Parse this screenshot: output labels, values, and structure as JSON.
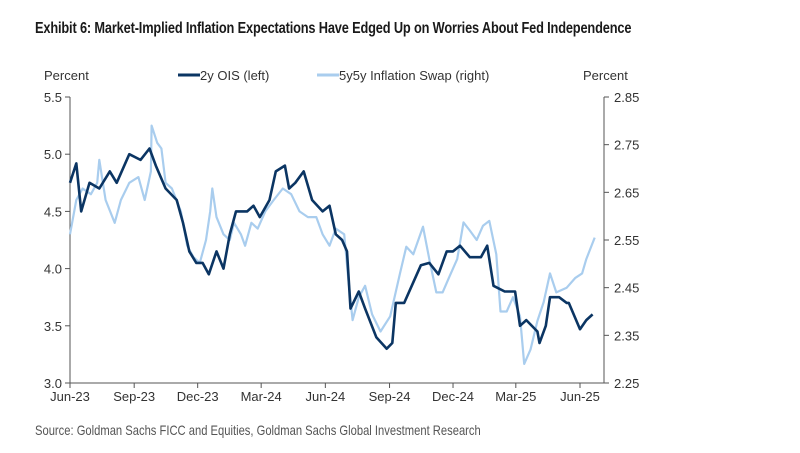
{
  "title": "Exhibit 6: Market-Implied Inflation Expectations Have Edged Up on Worries About Fed Independence",
  "source": "Source: Goldman Sachs FICC and Equities, Goldman Sachs Global Investment Research",
  "chart_data": {
    "type": "line",
    "left_axis": {
      "label": "Percent",
      "range": [
        3.0,
        5.5
      ],
      "ticks": [
        "5.5",
        "5.0",
        "4.5",
        "4.0",
        "3.5",
        "3.0"
      ]
    },
    "right_axis": {
      "label": "Percent",
      "range": [
        2.25,
        2.85
      ],
      "ticks": [
        "2.85",
        "2.75",
        "2.65",
        "2.55",
        "2.45",
        "2.35",
        "2.25"
      ]
    },
    "x_ticks": [
      {
        "label": "Jun-23",
        "date": "2023-06-01"
      },
      {
        "label": "Sep-23",
        "date": "2023-09-01"
      },
      {
        "label": "Dec-23",
        "date": "2023-12-01"
      },
      {
        "label": "Mar-24",
        "date": "2024-03-01"
      },
      {
        "label": "Jun-24",
        "date": "2024-06-01"
      },
      {
        "label": "Sep-24",
        "date": "2024-09-01"
      },
      {
        "label": "Dec-24",
        "date": "2024-12-01"
      },
      {
        "label": "Mar-25",
        "date": "2025-03-01"
      },
      {
        "label": "Jun-25",
        "date": "2025-06-01"
      }
    ],
    "x_range": [
      "2023-06-01",
      "2025-06-20"
    ],
    "grid": false,
    "legend_position": "top",
    "series": [
      {
        "name": "2y OIS (left)",
        "axis": "left",
        "color": "#0b3563",
        "x": [
          "2023-06-01",
          "2023-06-10",
          "2023-06-17",
          "2023-06-29",
          "2023-07-13",
          "2023-07-28",
          "2023-08-07",
          "2023-08-25",
          "2023-09-10",
          "2023-09-23",
          "2023-10-02",
          "2023-10-16",
          "2023-11-01",
          "2023-11-10",
          "2023-11-19",
          "2023-11-29",
          "2023-12-08",
          "2023-12-17",
          "2023-12-28",
          "2024-01-07",
          "2024-01-16",
          "2024-01-25",
          "2024-02-10",
          "2024-02-19",
          "2024-02-28",
          "2024-03-13",
          "2024-03-22",
          "2024-04-04",
          "2024-04-10",
          "2024-04-19",
          "2024-05-01",
          "2024-05-13",
          "2024-05-28",
          "2024-06-07",
          "2024-06-16",
          "2024-06-25",
          "2024-07-02",
          "2024-07-07",
          "2024-07-19",
          "2024-07-28",
          "2024-08-13",
          "2024-08-28",
          "2024-09-05",
          "2024-09-10",
          "2024-09-22",
          "2024-10-05",
          "2024-10-16",
          "2024-10-28",
          "2024-11-10",
          "2024-11-22",
          "2024-12-01",
          "2024-12-11",
          "2024-12-25",
          "2025-01-10",
          "2025-01-19",
          "2025-01-28",
          "2025-02-13",
          "2025-02-28",
          "2025-03-07",
          "2025-03-16",
          "2025-04-01",
          "2025-04-04",
          "2025-04-13",
          "2025-04-19",
          "2025-05-02",
          "2025-05-13",
          "2025-05-16",
          "2025-06-01",
          "2025-06-10",
          "2025-06-19"
        ],
        "y": [
          4.75,
          4.92,
          4.5,
          4.75,
          4.7,
          4.85,
          4.75,
          5.0,
          4.95,
          5.05,
          4.9,
          4.7,
          4.6,
          4.4,
          4.15,
          4.05,
          4.05,
          3.95,
          4.15,
          4.0,
          4.3,
          4.5,
          4.5,
          4.55,
          4.45,
          4.6,
          4.85,
          4.9,
          4.7,
          4.75,
          4.85,
          4.6,
          4.5,
          4.55,
          4.3,
          4.25,
          4.15,
          3.65,
          3.8,
          3.65,
          3.4,
          3.3,
          3.35,
          3.7,
          3.7,
          3.88,
          4.03,
          4.05,
          3.95,
          4.15,
          4.15,
          4.2,
          4.1,
          4.1,
          4.2,
          3.85,
          3.8,
          3.8,
          3.5,
          3.55,
          3.45,
          3.35,
          3.5,
          3.75,
          3.75,
          3.7,
          3.7,
          3.47,
          3.55,
          3.6
        ]
      },
      {
        "name": "5y5y Inflation Swap (right)",
        "axis": "right",
        "color": "#a9cdee",
        "x": [
          "2023-06-01",
          "2023-06-10",
          "2023-06-19",
          "2023-07-01",
          "2023-07-10",
          "2023-07-13",
          "2023-07-22",
          "2023-08-04",
          "2023-08-13",
          "2023-08-25",
          "2023-09-07",
          "2023-09-16",
          "2023-09-25",
          "2023-09-26",
          "2023-10-04",
          "2023-10-10",
          "2023-10-16",
          "2023-10-25",
          "2023-11-07",
          "2023-11-16",
          "2023-11-25",
          "2023-12-04",
          "2023-12-13",
          "2023-12-19",
          "2023-12-22",
          "2023-12-28",
          "2024-01-07",
          "2024-01-16",
          "2024-01-22",
          "2024-02-01",
          "2024-02-07",
          "2024-02-16",
          "2024-02-25",
          "2024-03-07",
          "2024-03-19",
          "2024-04-01",
          "2024-04-13",
          "2024-04-25",
          "2024-05-07",
          "2024-05-19",
          "2024-05-28",
          "2024-06-07",
          "2024-06-16",
          "2024-06-28",
          "2024-07-04",
          "2024-07-10",
          "2024-07-19",
          "2024-07-28",
          "2024-08-07",
          "2024-08-19",
          "2024-09-02",
          "2024-09-16",
          "2024-09-25",
          "2024-10-05",
          "2024-10-19",
          "2024-10-28",
          "2024-11-07",
          "2024-11-16",
          "2024-11-25",
          "2024-12-07",
          "2024-12-16",
          "2024-12-25",
          "2025-01-04",
          "2025-01-13",
          "2025-01-22",
          "2025-02-01",
          "2025-02-07",
          "2025-02-16",
          "2025-02-25",
          "2025-03-07",
          "2025-03-13",
          "2025-03-22",
          "2025-04-01",
          "2025-04-10",
          "2025-04-19",
          "2025-04-28",
          "2025-05-13",
          "2025-05-25",
          "2025-06-04",
          "2025-06-10",
          "2025-06-22"
        ],
        "y": [
          2.562,
          2.634,
          2.658,
          2.646,
          2.67,
          2.718,
          2.634,
          2.586,
          2.634,
          2.67,
          2.682,
          2.634,
          2.694,
          2.79,
          2.754,
          2.742,
          2.67,
          2.658,
          2.61,
          2.538,
          2.514,
          2.502,
          2.55,
          2.61,
          2.658,
          2.598,
          2.562,
          2.55,
          2.586,
          2.562,
          2.538,
          2.586,
          2.574,
          2.61,
          2.634,
          2.658,
          2.646,
          2.61,
          2.598,
          2.598,
          2.562,
          2.538,
          2.574,
          2.562,
          2.466,
          2.382,
          2.43,
          2.454,
          2.394,
          2.358,
          2.39,
          2.48,
          2.536,
          2.52,
          2.578,
          2.51,
          2.44,
          2.44,
          2.47,
          2.51,
          2.587,
          2.57,
          2.55,
          2.58,
          2.59,
          2.52,
          2.4,
          2.4,
          2.43,
          2.39,
          2.29,
          2.32,
          2.38,
          2.42,
          2.48,
          2.44,
          2.45,
          2.47,
          2.48,
          2.51,
          2.555
        ]
      }
    ]
  }
}
